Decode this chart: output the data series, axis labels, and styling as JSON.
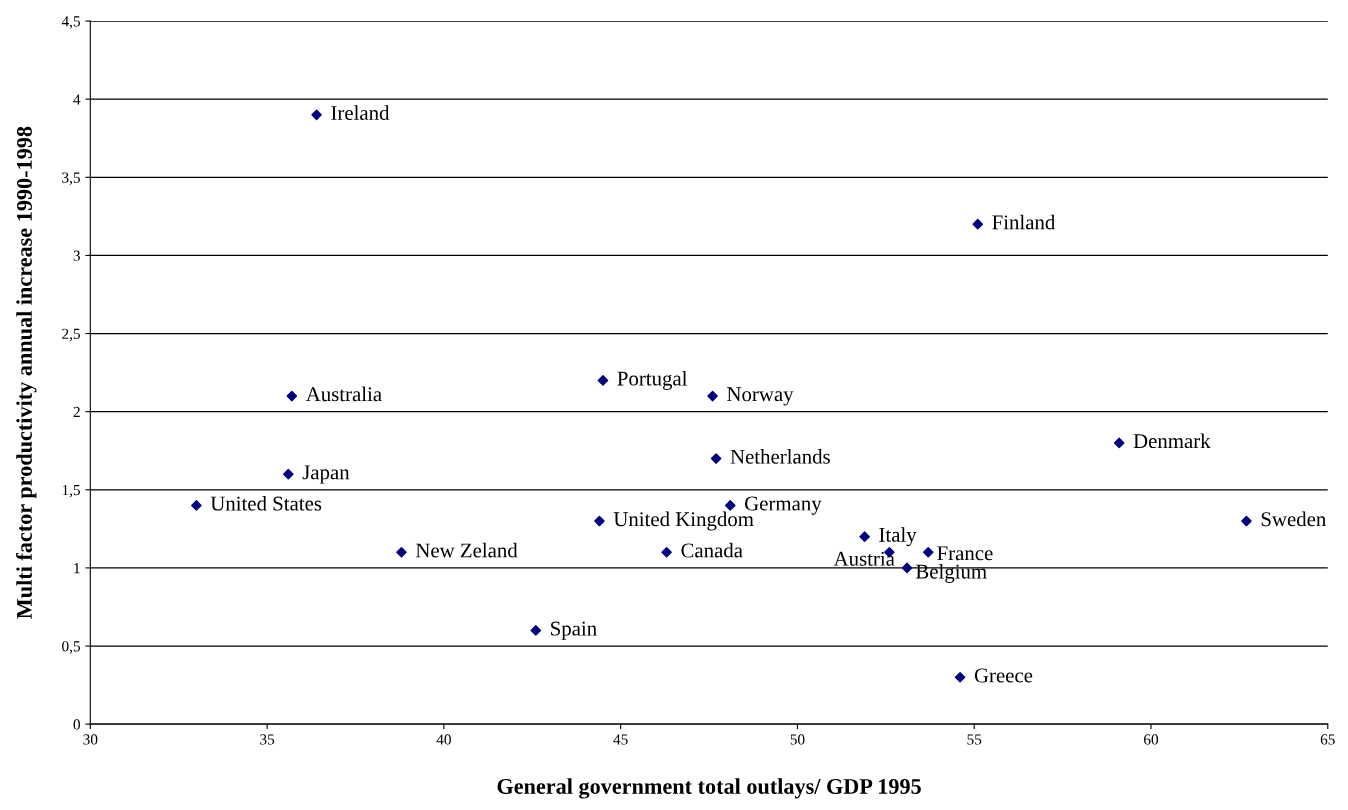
{
  "chart_data": {
    "type": "scatter",
    "xlabel": "General government total outlays/ GDP 1995",
    "ylabel": "Multi factor productivity annual increase 1990-1998",
    "x": [
      33.0,
      35.6,
      35.7,
      36.4,
      38.8,
      42.6,
      44.4,
      44.5,
      46.3,
      47.6,
      47.7,
      48.1,
      51.9,
      52.6,
      53.7,
      53.1,
      55.1,
      54.6,
      59.1,
      62.7
    ],
    "series": [
      {
        "color": "#000080",
        "values": [
          1.4,
          1.6,
          2.1,
          3.9,
          1.1,
          0.6,
          1.3,
          2.2,
          1.1,
          2.1,
          1.7,
          1.4,
          1.2,
          1.1,
          1.1,
          1.0,
          3.2,
          0.3,
          1.8,
          1.3
        ]
      }
    ],
    "annotations": [
      {
        "text": "United States",
        "x": 33.0,
        "y": 1.4
      },
      {
        "text": "Japan",
        "x": 35.6,
        "y": 1.6
      },
      {
        "text": "Australia",
        "x": 35.7,
        "y": 2.1
      },
      {
        "text": "Ireland",
        "x": 36.4,
        "y": 3.9
      },
      {
        "text": "New Zeland",
        "x": 38.8,
        "y": 1.1
      },
      {
        "text": "Spain",
        "x": 42.6,
        "y": 0.6
      },
      {
        "text": "United Kingdom",
        "x": 44.4,
        "y": 1.3
      },
      {
        "text": "Portugal",
        "x": 44.5,
        "y": 2.2
      },
      {
        "text": "Canada",
        "x": 46.3,
        "y": 1.1
      },
      {
        "text": "Norway",
        "x": 47.6,
        "y": 2.1
      },
      {
        "text": "Netherlands",
        "x": 47.7,
        "y": 1.7
      },
      {
        "text": "Germany",
        "x": 48.1,
        "y": 1.4
      },
      {
        "text": "Italy",
        "x": 51.9,
        "y": 1.2
      },
      {
        "text": "Austria",
        "x": 52.6,
        "y": 1.1
      },
      {
        "text": "France",
        "x": 53.7,
        "y": 1.1
      },
      {
        "text": "Belgium",
        "x": 53.1,
        "y": 1.0
      },
      {
        "text": "Finland",
        "x": 55.1,
        "y": 3.2
      },
      {
        "text": "Greece",
        "x": 54.6,
        "y": 0.3
      },
      {
        "text": "Denmark",
        "x": 59.1,
        "y": 1.8
      },
      {
        "text": "Sweden",
        "x": 62.7,
        "y": 1.3
      }
    ],
    "xlim": [
      30,
      65
    ],
    "xticks": [
      30,
      35,
      40,
      45,
      50,
      55,
      60,
      65
    ],
    "ylim": [
      0,
      4.5
    ],
    "yticks": [
      0,
      {
        "value": 0.5,
        "label": "0,5"
      },
      1,
      {
        "value": 1.5,
        "label": "1,5"
      },
      2,
      {
        "value": 2.5,
        "label": "2,5"
      },
      3,
      {
        "value": 3.5,
        "label": "3,5"
      },
      4,
      {
        "value": 4.5,
        "label": "4,5"
      }
    ],
    "grid": "y",
    "marker": "diamond",
    "legend": false
  }
}
